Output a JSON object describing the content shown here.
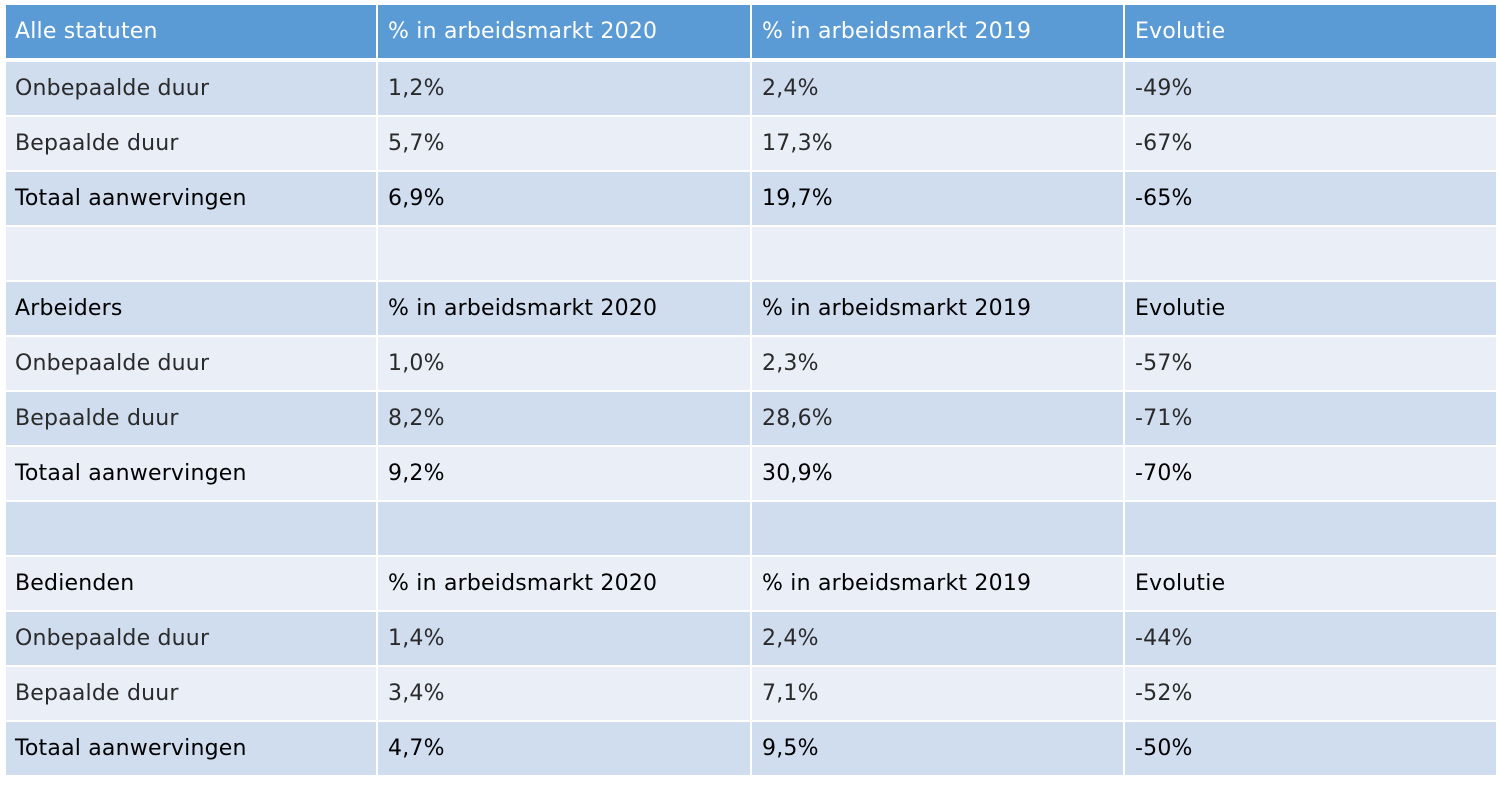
{
  "sections": [
    {
      "header": {
        "label": "Alle statuten",
        "col2020": "% in arbeidsmarkt 2020",
        "col2019": "% in arbeidsmarkt 2019",
        "evolution": "Evolutie"
      },
      "rows": [
        {
          "label": "Onbepaalde duur",
          "v2020": "1,2%",
          "v2019": "2,4%",
          "evolution": "-49%"
        },
        {
          "label": "Bepaalde duur",
          "v2020": "5,7%",
          "v2019": "17,3%",
          "evolution": "-67%"
        },
        {
          "label": "Totaal aanwervingen",
          "v2020": "6,9%",
          "v2019": "19,7%",
          "evolution": "-65%"
        }
      ]
    },
    {
      "header": {
        "label": "Arbeiders",
        "col2020": "% in arbeidsmarkt 2020",
        "col2019": "% in arbeidsmarkt 2019",
        "evolution": "Evolutie"
      },
      "rows": [
        {
          "label": "Onbepaalde duur",
          "v2020": "1,0%",
          "v2019": "2,3%",
          "evolution": "-57%"
        },
        {
          "label": "Bepaalde duur",
          "v2020": "8,2%",
          "v2019": "28,6%",
          "evolution": "-71%"
        },
        {
          "label": "Totaal aanwervingen",
          "v2020": "9,2%",
          "v2019": "30,9%",
          "evolution": "-70%"
        }
      ]
    },
    {
      "header": {
        "label": "Bedienden",
        "col2020": "% in arbeidsmarkt 2020",
        "col2019": "% in arbeidsmarkt 2019",
        "evolution": "Evolutie"
      },
      "rows": [
        {
          "label": "Onbepaalde duur",
          "v2020": "1,4%",
          "v2019": "2,4%",
          "evolution": "-44%"
        },
        {
          "label": "Bepaalde duur",
          "v2020": "3,4%",
          "v2019": "7,1%",
          "evolution": "-52%"
        },
        {
          "label": "Totaal aanwervingen",
          "v2020": "4,7%",
          "v2019": "9,5%",
          "evolution": "-50%"
        }
      ]
    }
  ],
  "colors": {
    "header_blue": "#5b9bd5",
    "row_dark": "#d0ddef",
    "row_light": "#e9eef7"
  }
}
